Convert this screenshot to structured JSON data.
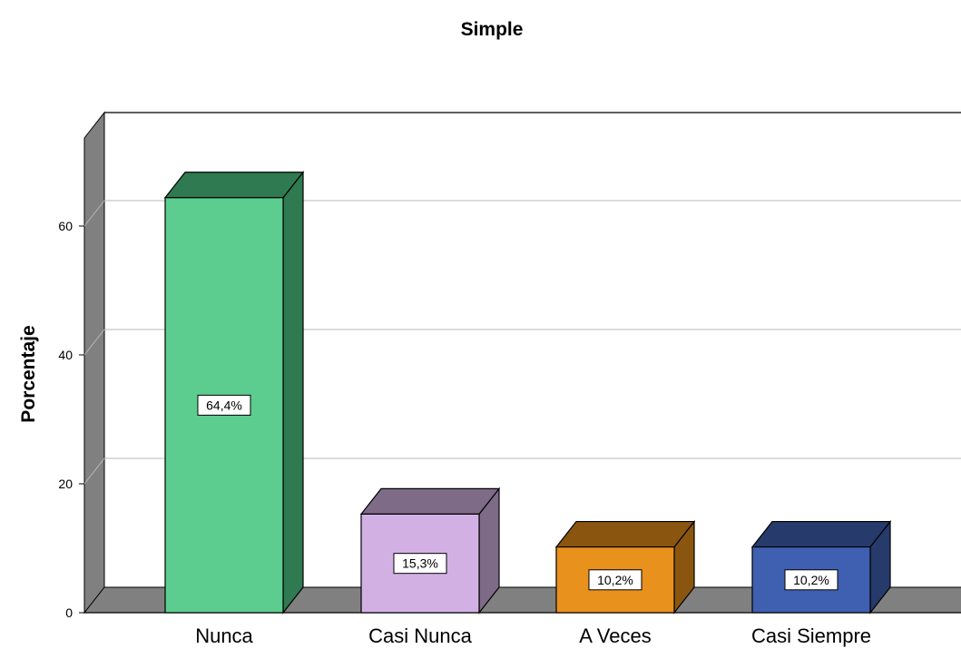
{
  "chart_data": {
    "type": "bar",
    "title": "Simple",
    "xlabel": "",
    "ylabel": "Porcentaje",
    "ylim": [
      0,
      68
    ],
    "yticks": [
      0,
      20,
      40,
      60
    ],
    "grid": true,
    "legend": "none",
    "categories": [
      "Nunca",
      "Casi Nunca",
      "A Veces",
      "Casi Siempre"
    ],
    "values": [
      64.4,
      15.3,
      10.2,
      10.2
    ],
    "data_labels": [
      "64,4%",
      "15,3%",
      "10,2%",
      "10,2%"
    ],
    "colors": [
      {
        "front": "#5ccd8f",
        "top": "#2f7a50",
        "side": "#2f7a50"
      },
      {
        "front": "#d2b0e4",
        "top": "#7e6b88",
        "side": "#7e6b88"
      },
      {
        "front": "#e8911c",
        "top": "#8a560f",
        "side": "#8a560f"
      },
      {
        "front": "#3f5fb0",
        "top": "#263a6c",
        "side": "#263a6c"
      }
    ],
    "wall_color": "#808080"
  }
}
